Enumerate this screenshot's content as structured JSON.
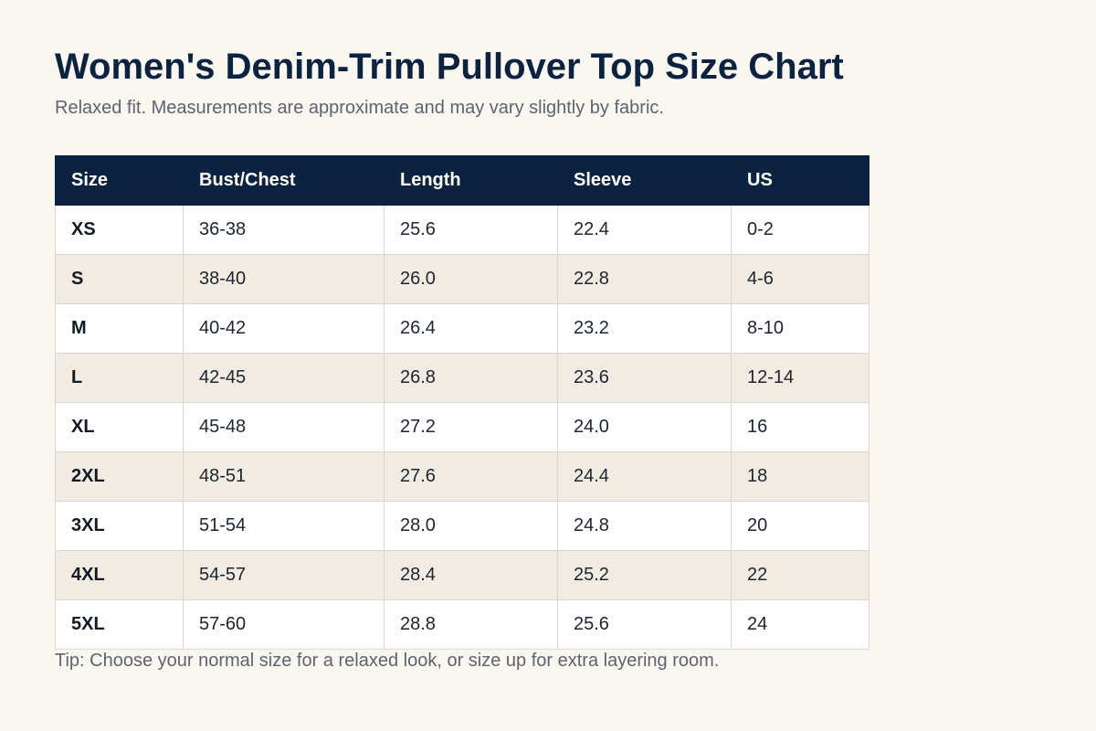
{
  "title": "Women's Denim-Trim Pullover Top Size Chart",
  "subtitle": "Relaxed fit. Measurements are approximate and may vary slightly by fabric.",
  "table": {
    "headers": [
      "Size",
      "Bust/Chest",
      "Length",
      "Sleeve",
      "US"
    ],
    "rows": [
      [
        "XS",
        "36-38",
        "25.6",
        "22.4",
        "0-2"
      ],
      [
        "S",
        "38-40",
        "26.0",
        "22.8",
        "4-6"
      ],
      [
        "M",
        "40-42",
        "26.4",
        "23.2",
        "8-10"
      ],
      [
        "L",
        "42-45",
        "26.8",
        "23.6",
        "12-14"
      ],
      [
        "XL",
        "45-48",
        "27.2",
        "24.0",
        "16"
      ],
      [
        "2XL",
        "48-51",
        "27.6",
        "24.4",
        "18"
      ],
      [
        "3XL",
        "51-54",
        "28.0",
        "24.8",
        "20"
      ],
      [
        "4XL",
        "54-57",
        "28.4",
        "25.2",
        "22"
      ],
      [
        "5XL",
        "57-60",
        "28.8",
        "25.6",
        "24"
      ]
    ]
  },
  "tip": "Tip: Choose your normal size for a relaxed look, or size up for extra layering room.",
  "colors": {
    "background": "#faf6f0",
    "header_bg": "#0b2240",
    "title": "#0b2240",
    "muted_text": "#5b6470",
    "row_alt": "#f2ebe2",
    "border": "#dcd6cf"
  }
}
